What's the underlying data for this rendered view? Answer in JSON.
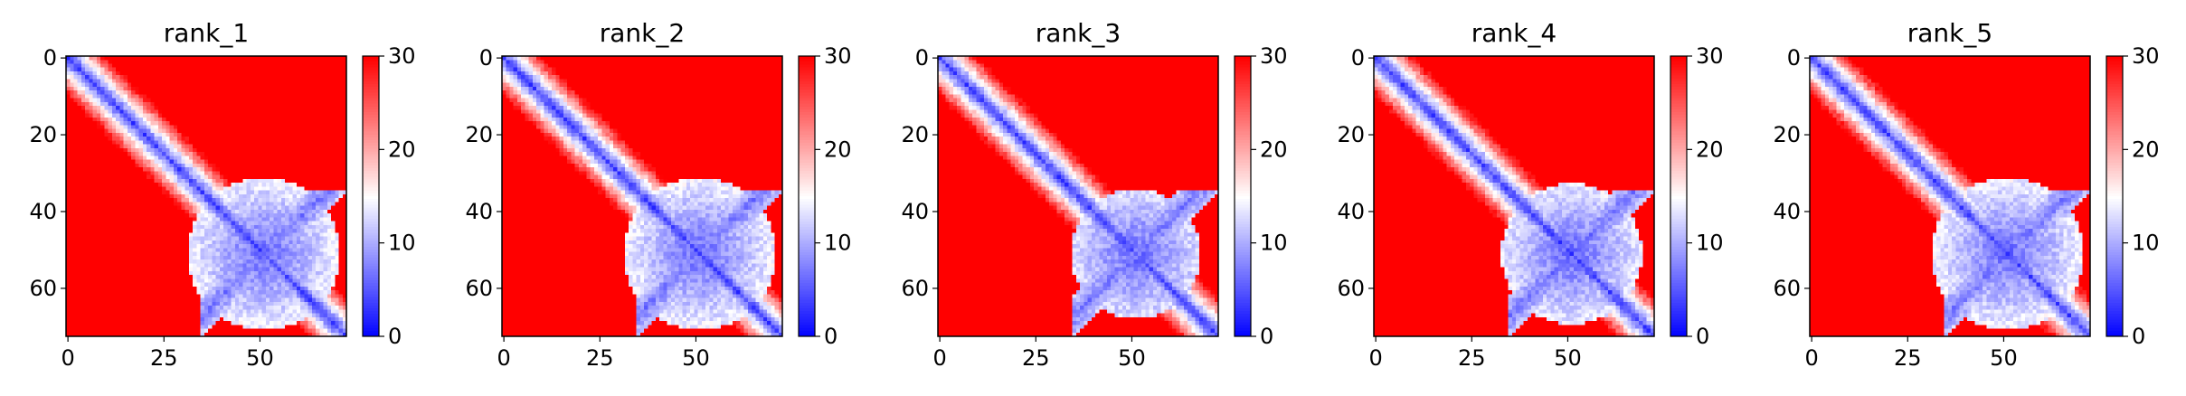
{
  "chart_data": [
    {
      "type": "heatmap",
      "title": "rank_1",
      "n": 73,
      "xlim": [
        0,
        72
      ],
      "ylim": [
        72,
        0
      ],
      "xticks": [
        "0",
        "25",
        "50"
      ],
      "yticks": [
        "0",
        "20",
        "40",
        "60"
      ],
      "colorbar": {
        "min": 0,
        "max": 30,
        "ticks": [
          "0",
          "10",
          "20",
          "30"
        ],
        "colormap": "bwr"
      },
      "pattern": {
        "diagonal_band_width": 5,
        "blob_center": 51,
        "blob_radius": 14,
        "arms": true
      }
    },
    {
      "type": "heatmap",
      "title": "rank_2",
      "n": 73,
      "xlim": [
        0,
        72
      ],
      "ylim": [
        72,
        0
      ],
      "xticks": [
        "0",
        "25",
        "50"
      ],
      "yticks": [
        "0",
        "20",
        "40",
        "60"
      ],
      "colorbar": {
        "min": 0,
        "max": 30,
        "ticks": [
          "0",
          "10",
          "20",
          "30"
        ],
        "colormap": "bwr"
      },
      "pattern": {
        "diagonal_band_width": 5,
        "blob_center": 51,
        "blob_radius": 14,
        "arms": true
      }
    },
    {
      "type": "heatmap",
      "title": "rank_3",
      "n": 73,
      "xlim": [
        0,
        72
      ],
      "ylim": [
        72,
        0
      ],
      "xticks": [
        "0",
        "25",
        "50"
      ],
      "yticks": [
        "0",
        "20",
        "40",
        "60"
      ],
      "colorbar": {
        "min": 0,
        "max": 30,
        "ticks": [
          "0",
          "10",
          "20",
          "30"
        ],
        "colormap": "bwr"
      },
      "pattern": {
        "diagonal_band_width": 5,
        "blob_center": 51,
        "blob_radius": 12,
        "arms": true
      }
    },
    {
      "type": "heatmap",
      "title": "rank_4",
      "n": 73,
      "xlim": [
        0,
        72
      ],
      "ylim": [
        72,
        0
      ],
      "xticks": [
        "0",
        "25",
        "50"
      ],
      "yticks": [
        "0",
        "20",
        "40",
        "60"
      ],
      "colorbar": {
        "min": 0,
        "max": 30,
        "ticks": [
          "0",
          "10",
          "20",
          "30"
        ],
        "colormap": "bwr"
      },
      "pattern": {
        "diagonal_band_width": 5,
        "blob_center": 51,
        "blob_radius": 13,
        "arms": true
      }
    },
    {
      "type": "heatmap",
      "title": "rank_5",
      "n": 73,
      "xlim": [
        0,
        72
      ],
      "ylim": [
        72,
        0
      ],
      "xticks": [
        "0",
        "25",
        "50"
      ],
      "yticks": [
        "0",
        "20",
        "40",
        "60"
      ],
      "colorbar": {
        "min": 0,
        "max": 30,
        "ticks": [
          "0",
          "10",
          "20",
          "30"
        ],
        "colormap": "bwr"
      },
      "pattern": {
        "diagonal_band_width": 5,
        "blob_center": 51,
        "blob_radius": 14,
        "arms": true
      }
    }
  ]
}
